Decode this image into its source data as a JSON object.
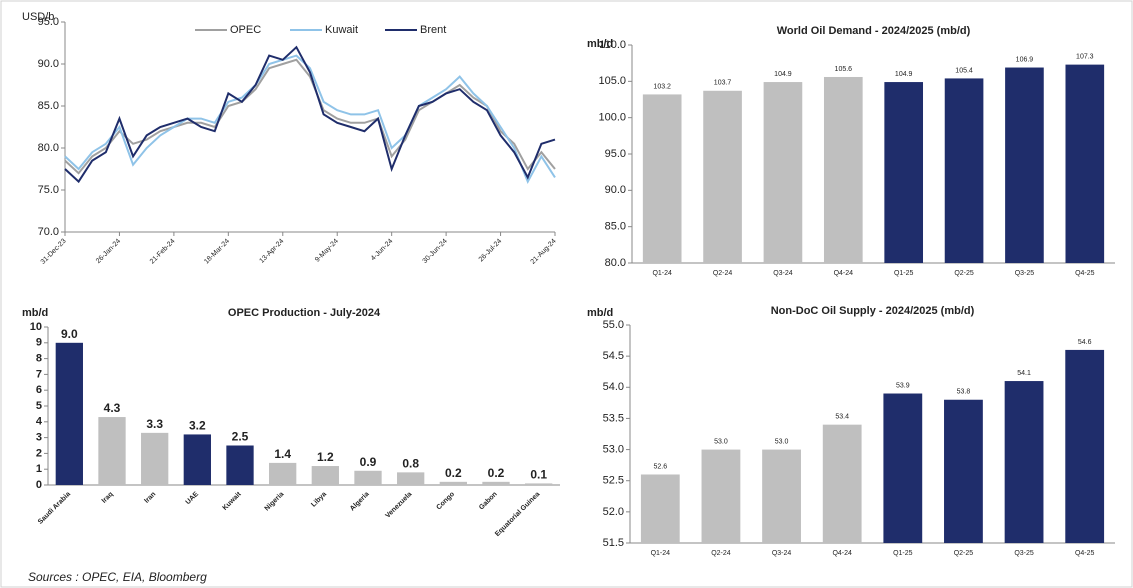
{
  "chart_data": [
    {
      "type": "line",
      "y_label": "USD/b",
      "legend": "top",
      "categories": [
        "31-Dec-23",
        null,
        null,
        null,
        "26-Jan-24",
        null,
        null,
        null,
        "21-Feb-24",
        null,
        null,
        null,
        "18-Mar-24",
        null,
        null,
        null,
        "13-Apr-24",
        null,
        null,
        null,
        "9-May-24",
        null,
        null,
        null,
        "4-Jun-24",
        null,
        null,
        null,
        "30-Jun-24",
        null,
        null,
        null,
        "26-Jul-24",
        null,
        null,
        null,
        "21-Aug-24"
      ],
      "series": [
        {
          "name": "OPEC",
          "color": "#a0a0a0",
          "values": [
            78.5,
            77,
            79,
            80,
            82,
            80.5,
            81,
            82,
            82.5,
            83,
            83,
            82.5,
            85,
            85.5,
            87,
            89.5,
            90,
            90.5,
            88.5,
            84.5,
            83.5,
            83,
            83,
            83.5,
            79,
            81,
            84.5,
            85.5,
            86.5,
            87.5,
            86,
            85,
            82,
            80.5,
            77.5,
            79.5,
            77.5
          ]
        },
        {
          "name": "Kuwait",
          "color": "#8fc3e8",
          "values": [
            79,
            77.5,
            79.5,
            80.5,
            82.5,
            78,
            80,
            81.5,
            82.5,
            83.5,
            83.5,
            83,
            85.5,
            86,
            87.5,
            90,
            90.5,
            91,
            89.5,
            85.5,
            84.5,
            84,
            84,
            84.5,
            80,
            81.5,
            85,
            86,
            87,
            88.5,
            86.5,
            85,
            82.5,
            80,
            76,
            79,
            76.5
          ]
        },
        {
          "name": "Brent",
          "color": "#1f2d6b",
          "values": [
            77.5,
            76,
            78.5,
            79.5,
            83.5,
            79,
            81.5,
            82.5,
            83,
            83.5,
            82.5,
            82,
            86.5,
            85.5,
            87.5,
            91,
            90.5,
            92,
            89,
            84,
            83,
            82.5,
            82,
            83.5,
            77.5,
            81.5,
            85,
            85.5,
            86.5,
            87,
            85.5,
            84.5,
            81.5,
            79.5,
            76.5,
            80.5,
            81
          ]
        }
      ],
      "ylim": [
        70,
        95
      ],
      "yticks": [
        {
          "value": 70,
          "label": "70.0"
        },
        {
          "value": 75,
          "label": "75.0"
        },
        {
          "value": 80,
          "label": "80.0"
        },
        {
          "value": 85,
          "label": "85.0"
        },
        {
          "value": 90,
          "label": "90.0"
        },
        {
          "value": 95,
          "label": "95.0"
        }
      ]
    },
    {
      "type": "bar",
      "title": "World Oil Demand - 2024/2025 (mb/d)",
      "y_label": "mb/d",
      "categories": [
        "Q1-24",
        "Q2-24",
        "Q3-24",
        "Q4-24",
        "Q1-25",
        "Q2-25",
        "Q3-25",
        "Q4-25"
      ],
      "values": [
        103.2,
        103.7,
        104.9,
        105.6,
        104.9,
        105.4,
        106.9,
        107.3
      ],
      "value_labels": [
        "103.2",
        "103.7",
        "104.9",
        "105.6",
        "104.9",
        "105.4",
        "106.9",
        "107.3"
      ],
      "colors": [
        "#bfbfbf",
        "#bfbfbf",
        "#bfbfbf",
        "#bfbfbf",
        "#1f2d6b",
        "#1f2d6b",
        "#1f2d6b",
        "#1f2d6b"
      ],
      "ylim": [
        80,
        110
      ],
      "yticks": [
        {
          "value": 80,
          "label": "80.0"
        },
        {
          "value": 85,
          "label": "85.0"
        },
        {
          "value": 90,
          "label": "90.0"
        },
        {
          "value": 95,
          "label": "95.0"
        },
        {
          "value": 100,
          "label": "100.0"
        },
        {
          "value": 105,
          "label": "105.0"
        },
        {
          "value": 110,
          "label": "110.0"
        }
      ]
    },
    {
      "type": "bar",
      "title": "OPEC Production - July-2024",
      "y_label": "mb/d",
      "rotate_labels": true,
      "categories": [
        "Saudi Arabia",
        "Iraq",
        "Iran",
        "UAE",
        "Kuwait",
        "Nigeria",
        "Libya",
        "Algeria",
        "Venezuela",
        "Congo",
        "Gabon",
        "Equatorial Guinea"
      ],
      "values": [
        9.0,
        4.3,
        3.3,
        3.2,
        2.5,
        1.4,
        1.2,
        0.9,
        0.8,
        0.2,
        0.2,
        0.1
      ],
      "value_labels": [
        "9.0",
        "4.3",
        "3.3",
        "3.2",
        "2.5",
        "1.4",
        "1.2",
        "0.9",
        "0.8",
        "0.2",
        "0.2",
        "0.1"
      ],
      "colors": [
        "#1f2d6b",
        "#bfbfbf",
        "#bfbfbf",
        "#1f2d6b",
        "#1f2d6b",
        "#bfbfbf",
        "#bfbfbf",
        "#bfbfbf",
        "#bfbfbf",
        "#bfbfbf",
        "#bfbfbf",
        "#bfbfbf"
      ],
      "ylim": [
        0,
        10
      ],
      "yticks": [
        0,
        1,
        2,
        3,
        4,
        5,
        6,
        7,
        8,
        9,
        10
      ]
    },
    {
      "type": "bar",
      "title": "Non-DoC Oil Supply - 2024/2025 (mb/d)",
      "y_label": "mb/d",
      "categories": [
        "Q1-24",
        "Q2-24",
        "Q3-24",
        "Q4-24",
        "Q1-25",
        "Q2-25",
        "Q3-25",
        "Q4-25"
      ],
      "values": [
        52.6,
        53.0,
        53.0,
        53.4,
        53.9,
        53.8,
        54.1,
        54.6
      ],
      "value_labels": [
        "52.6",
        "53.0",
        "53.0",
        "53.4",
        "53.9",
        "53.8",
        "54.1",
        "54.6"
      ],
      "colors": [
        "#bfbfbf",
        "#bfbfbf",
        "#bfbfbf",
        "#bfbfbf",
        "#1f2d6b",
        "#1f2d6b",
        "#1f2d6b",
        "#1f2d6b"
      ],
      "ylim": [
        51.5,
        55
      ],
      "yticks": [
        {
          "value": 51.5,
          "label": "51.5"
        },
        {
          "value": 52,
          "label": "52.0"
        },
        {
          "value": 52.5,
          "label": "52.5"
        },
        {
          "value": 53,
          "label": "53.0"
        },
        {
          "value": 53.5,
          "label": "53.5"
        },
        {
          "value": 54,
          "label": "54.0"
        },
        {
          "value": 54.5,
          "label": "54.5"
        },
        {
          "value": 55,
          "label": "55.0"
        }
      ]
    }
  ],
  "source": "Sources : OPEC, EIA, Bloomberg"
}
